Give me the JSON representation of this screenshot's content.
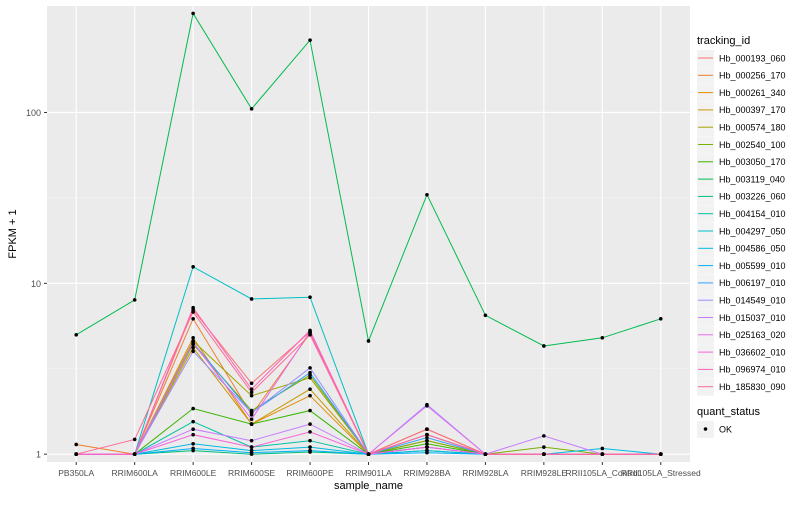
{
  "chart_data": {
    "type": "line",
    "title": "",
    "xlabel": "sample_name",
    "ylabel": "FPKM + 1",
    "y_scale": "log10",
    "ylim": [
      0.9,
      420
    ],
    "y_ticks": [
      1,
      10,
      100
    ],
    "y_tick_labels": [
      "1",
      "10",
      "100"
    ],
    "categories": [
      "PB350LA",
      "RRIM600LA",
      "RRIM600LE",
      "RRIM600SE",
      "RRIM600PE",
      "RRIM901LA",
      "RRIM928BA",
      "RRIM928LA",
      "RRIM928LE",
      "RRII105LA_Control",
      "RRII105LA_Stressed"
    ],
    "category_labels": [
      "PB350LA",
      "RRIM600LA",
      "RRIM600LE",
      "RRIM600SE",
      "RRIM600PE",
      "RRIM901LA",
      "RRIM928BA",
      "RRIM928LA",
      "RRIM928LE",
      "RRII105LA_Control",
      "RRII105LA_Stressed"
    ],
    "legend_title": "tracking_id",
    "legend_position": "right",
    "series": [
      {
        "name": "Hb_000193_060",
        "color": "#F8766D",
        "values": [
          1.0,
          1.0,
          7.0,
          2.6,
          5.2,
          1.0,
          1.3,
          1.0,
          1.0,
          1.0,
          1.0
        ]
      },
      {
        "name": "Hb_000256_170",
        "color": "#F07F2A",
        "values": [
          1.14,
          1.0,
          6.2,
          1.7,
          5.1,
          1.0,
          1.4,
          1.0,
          1.0,
          1.0,
          1.0
        ]
      },
      {
        "name": "Hb_000261_340",
        "color": "#E08B00",
        "values": [
          1.0,
          1.0,
          4.8,
          1.5,
          2.2,
          1.0,
          1.4,
          1.0,
          1.0,
          1.0,
          1.0
        ]
      },
      {
        "name": "Hb_000397_170",
        "color": "#C99800",
        "values": [
          1.0,
          1.0,
          4.2,
          1.5,
          2.4,
          1.0,
          1.2,
          1.0,
          1.0,
          1.0,
          1.0
        ]
      },
      {
        "name": "Hb_000574_180",
        "color": "#A3A500",
        "values": [
          1.0,
          1.0,
          4.6,
          2.2,
          2.8,
          1.0,
          1.3,
          1.0,
          1.0,
          1.0,
          1.0
        ]
      },
      {
        "name": "Hb_002540_100",
        "color": "#7CAE00",
        "values": [
          1.0,
          1.0,
          4.4,
          1.8,
          2.9,
          1.0,
          1.2,
          1.0,
          1.1,
          1.0,
          1.0
        ]
      },
      {
        "name": "Hb_003050_170",
        "color": "#39B600",
        "values": [
          1.0,
          1.0,
          1.85,
          1.5,
          1.8,
          1.0,
          1.15,
          1.0,
          1.0,
          1.0,
          1.0
        ]
      },
      {
        "name": "Hb_003119_040",
        "color": "#00BB4E",
        "values": [
          5.0,
          8.0,
          380,
          105,
          265,
          4.6,
          33,
          6.5,
          4.3,
          4.8,
          6.2
        ]
      },
      {
        "name": "Hb_003226_060",
        "color": "#00BF7D",
        "values": [
          1.0,
          1.0,
          1.05,
          1.0,
          1.03,
          1.0,
          1.05,
          1.0,
          1.0,
          1.0,
          1.0
        ]
      },
      {
        "name": "Hb_004154_010",
        "color": "#00C1A3",
        "values": [
          1.0,
          1.0,
          1.55,
          1.1,
          1.2,
          1.0,
          1.1,
          1.0,
          1.0,
          1.0,
          1.0
        ]
      },
      {
        "name": "Hb_004297_050",
        "color": "#00BFC4",
        "values": [
          1.0,
          1.0,
          12.5,
          8.1,
          8.3,
          1.0,
          1.1,
          1.0,
          1.0,
          1.0,
          1.0
        ]
      },
      {
        "name": "Hb_004586_050",
        "color": "#00BAE0",
        "values": [
          1.0,
          1.0,
          1.15,
          1.05,
          1.1,
          1.0,
          1.05,
          1.0,
          1.0,
          1.08,
          1.0
        ]
      },
      {
        "name": "Hb_005599_010",
        "color": "#00B0F6",
        "values": [
          1.0,
          1.0,
          1.08,
          1.02,
          1.05,
          1.0,
          1.02,
          1.0,
          1.0,
          1.0,
          1.0
        ]
      },
      {
        "name": "Hb_006197_010",
        "color": "#35A2FF",
        "values": [
          1.0,
          1.0,
          4.5,
          1.75,
          3.0,
          1.0,
          1.25,
          1.0,
          1.0,
          1.0,
          1.0
        ]
      },
      {
        "name": "Hb_014549_010",
        "color": "#9590FF",
        "values": [
          1.0,
          1.0,
          4.0,
          1.75,
          3.2,
          1.0,
          1.95,
          1.0,
          1.0,
          1.0,
          1.0
        ]
      },
      {
        "name": "Hb_015037_010",
        "color": "#C77CFF",
        "values": [
          1.0,
          1.0,
          1.4,
          1.2,
          1.5,
          1.0,
          1.1,
          1.0,
          1.28,
          1.0,
          1.0
        ]
      },
      {
        "name": "Hb_025163_020",
        "color": "#E76BF3",
        "values": [
          1.0,
          1.0,
          4.5,
          1.6,
          5.2,
          1.0,
          1.92,
          1.0,
          1.0,
          1.0,
          1.0
        ]
      },
      {
        "name": "Hb_036602_010",
        "color": "#FA62DB",
        "values": [
          1.0,
          1.0,
          1.3,
          1.1,
          1.35,
          1.0,
          1.1,
          1.0,
          1.0,
          1.0,
          1.0
        ]
      },
      {
        "name": "Hb_096974_010",
        "color": "#FF62BC",
        "values": [
          1.0,
          1.0,
          7.2,
          2.4,
          5.3,
          1.0,
          1.3,
          1.0,
          1.0,
          1.0,
          1.0
        ]
      },
      {
        "name": "Hb_185830_090",
        "color": "#FF6C91",
        "values": [
          1.0,
          1.22,
          6.8,
          2.3,
          5.0,
          1.0,
          1.4,
          1.0,
          1.0,
          1.0,
          1.0
        ]
      }
    ],
    "legend2_title": "quant_status",
    "legend2_items": [
      "OK"
    ]
  }
}
